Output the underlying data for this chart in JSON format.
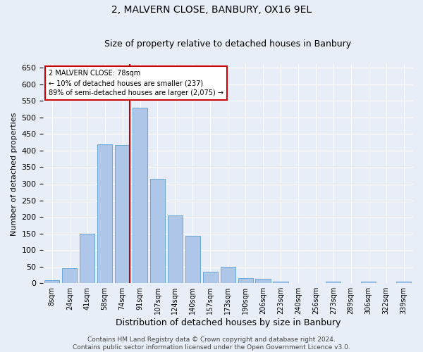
{
  "title": "2, MALVERN CLOSE, BANBURY, OX16 9EL",
  "subtitle": "Size of property relative to detached houses in Banbury",
  "xlabel": "Distribution of detached houses by size in Banbury",
  "ylabel": "Number of detached properties",
  "categories": [
    "8sqm",
    "24sqm",
    "41sqm",
    "58sqm",
    "74sqm",
    "91sqm",
    "107sqm",
    "124sqm",
    "140sqm",
    "157sqm",
    "173sqm",
    "190sqm",
    "206sqm",
    "223sqm",
    "240sqm",
    "256sqm",
    "273sqm",
    "289sqm",
    "306sqm",
    "322sqm",
    "339sqm"
  ],
  "values": [
    8,
    45,
    150,
    418,
    417,
    530,
    315,
    205,
    143,
    35,
    50,
    15,
    13,
    5,
    0,
    0,
    5,
    0,
    5,
    0,
    5
  ],
  "bar_color": "#aec6e8",
  "bar_edge_color": "#5a9fd4",
  "background_color": "#e8eef8",
  "grid_color": "#ffffff",
  "vline_x_index": 4,
  "vline_color": "#cc0000",
  "annotation_text": "2 MALVERN CLOSE: 78sqm\n← 10% of detached houses are smaller (237)\n89% of semi-detached houses are larger (2,075) →",
  "annotation_box_facecolor": "#ffffff",
  "annotation_box_edgecolor": "#cc0000",
  "footer_line1": "Contains HM Land Registry data © Crown copyright and database right 2024.",
  "footer_line2": "Contains public sector information licensed under the Open Government Licence v3.0.",
  "ylim": [
    0,
    660
  ],
  "yticks": [
    0,
    50,
    100,
    150,
    200,
    250,
    300,
    350,
    400,
    450,
    500,
    550,
    600,
    650
  ],
  "title_fontsize": 10,
  "subtitle_fontsize": 9,
  "ylabel_fontsize": 8,
  "xlabel_fontsize": 9,
  "tick_fontsize": 8,
  "xtick_fontsize": 7,
  "annotation_fontsize": 7,
  "footer_fontsize": 6.5
}
